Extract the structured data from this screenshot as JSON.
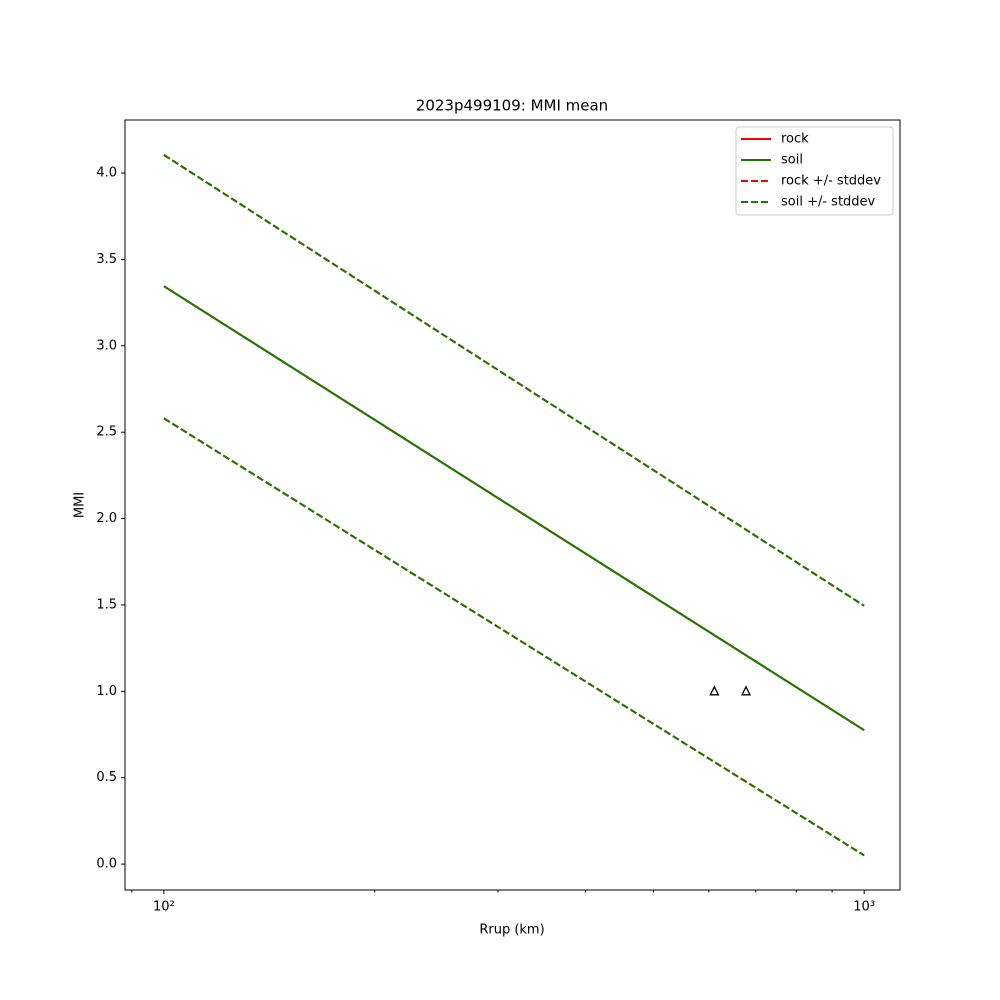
{
  "chart_data": {
    "type": "line",
    "title": "2023p499109: MMI mean",
    "xlabel": "Rrup (km)",
    "ylabel": "MMI",
    "xscale": "log",
    "x": [
      100,
      1000
    ],
    "series": [
      {
        "name": "rock",
        "color": "#ff0000",
        "dashed": false,
        "values": [
          3.345,
          0.775
        ]
      },
      {
        "name": "soil",
        "color": "#1a7a00",
        "dashed": false,
        "values": [
          3.345,
          0.775
        ]
      },
      {
        "name": "rock +/- stddev",
        "color": "#ff0000",
        "dashed": true,
        "upper": [
          4.105,
          1.495
        ],
        "lower": [
          2.58,
          0.05
        ]
      },
      {
        "name": "soil +/- stddev",
        "color": "#1a7a00",
        "dashed": true,
        "upper": [
          4.105,
          1.495
        ],
        "lower": [
          2.58,
          0.05
        ]
      }
    ],
    "observations": {
      "x": [
        611,
        678
      ],
      "values": [
        1.0,
        1.0
      ],
      "color": "#000000"
    },
    "xlim": [
      88,
      1125
    ],
    "ylim": [
      -0.15,
      4.307
    ],
    "xticks": [
      {
        "value": 100,
        "label": "10²"
      },
      {
        "value": 1000,
        "label": "10³"
      }
    ],
    "xminorticks": [
      90,
      200,
      300,
      400,
      500,
      600,
      700,
      800,
      900
    ],
    "yticks": [
      {
        "value": 0,
        "label": "0.0"
      },
      0.5,
      {
        "value": 1,
        "label": "1.0"
      },
      1.5,
      {
        "value": 2,
        "label": "2.0"
      },
      2.5,
      {
        "value": 3,
        "label": "3.0"
      },
      3.5,
      {
        "value": 4,
        "label": "4.0"
      }
    ],
    "legend": "upper right",
    "grid": false
  }
}
